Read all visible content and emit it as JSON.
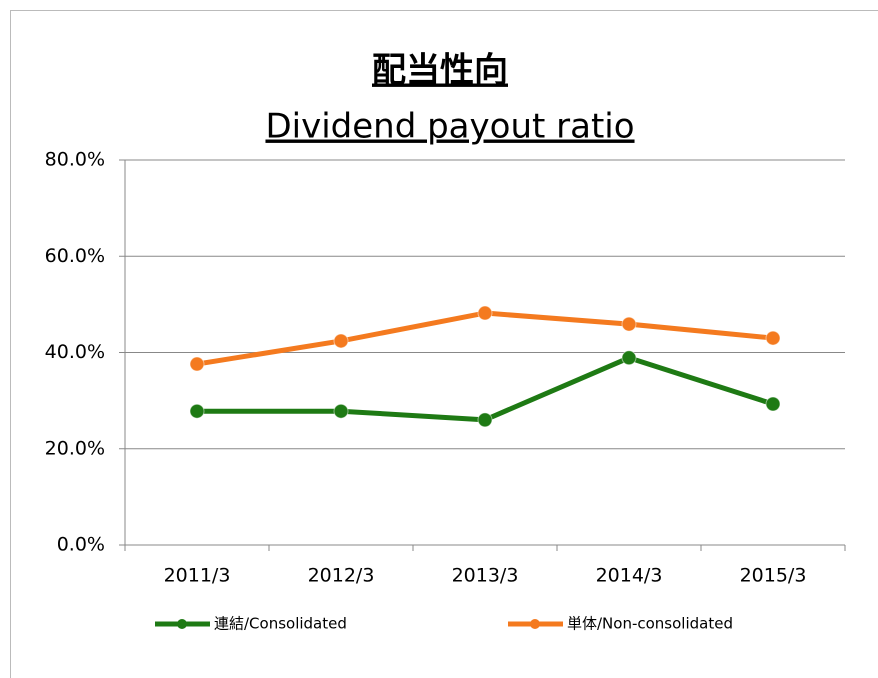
{
  "chart_data": {
    "type": "line",
    "title": "配当性向",
    "subtitle": "Dividend payout ratio",
    "categories": [
      "2011/3",
      "2012/3",
      "2013/3",
      "2014/3",
      "2015/3"
    ],
    "series": [
      {
        "name": "連結/Consolidated",
        "color": "#1e7a14",
        "values": [
          27.8,
          27.8,
          26.0,
          38.9,
          29.3
        ]
      },
      {
        "name": "単体/Non-consolidated",
        "color": "#f47a1f",
        "values": [
          37.6,
          42.4,
          48.2,
          45.9,
          43.0
        ]
      }
    ],
    "ylim": [
      0,
      80
    ],
    "yticks": [
      {
        "value": 0,
        "label": "0.0%"
      },
      {
        "value": 20,
        "label": "20.0%"
      },
      {
        "value": 40,
        "label": "40.0%"
      },
      {
        "value": 60,
        "label": "60.0%"
      },
      {
        "value": 80,
        "label": "80.0%"
      }
    ],
    "grid": true,
    "legend": "bottom"
  }
}
